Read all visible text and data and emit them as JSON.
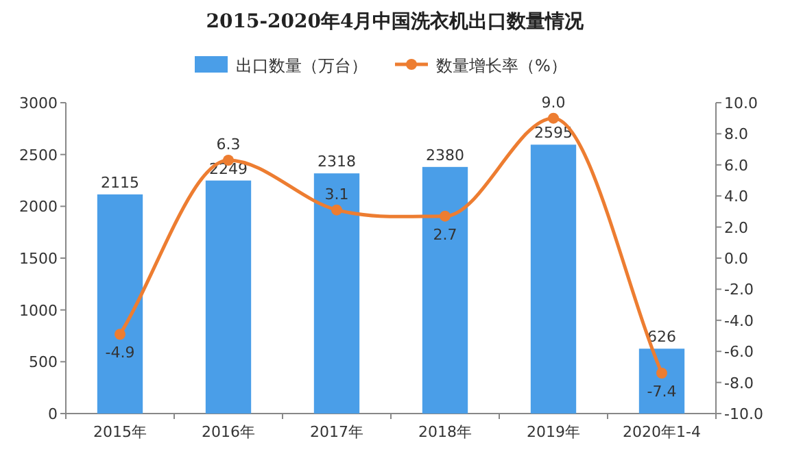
{
  "chart_data": {
    "type": "bar",
    "title": "2015-2020年4月中国洗衣机出口数量情况",
    "categories": [
      "2015年",
      "2016年",
      "2017年",
      "2018年",
      "2019年",
      "2020年1-4"
    ],
    "series": [
      {
        "name": "出口数量（万台）",
        "color": "#4a9ee8",
        "values": [
          2115,
          2249,
          2318,
          2380,
          2595,
          626
        ],
        "value_labels": [
          "2115",
          "2249",
          "2318",
          "2380",
          "2595",
          "626"
        ]
      },
      {
        "name": "数量增长率（%）",
        "type": "line",
        "axis": "y2",
        "color": "#ed7d31",
        "marker": "circle",
        "values": [
          -4.9,
          6.3,
          3.1,
          2.7,
          9.0,
          -7.4
        ],
        "value_labels": [
          "-4.9",
          "6.3",
          "3.1",
          "2.7",
          "9.0",
          "-7.4"
        ]
      }
    ],
    "ylim": [
      0,
      3000
    ],
    "yticks": [
      0,
      500,
      1000,
      1500,
      2000,
      2500,
      3000
    ],
    "y2lim": [
      -10,
      10
    ],
    "y2ticks": [
      {
        "value": -10,
        "label": "-10.0"
      },
      {
        "value": -8,
        "label": "-8.0"
      },
      {
        "value": -6,
        "label": "-6.0"
      },
      {
        "value": -4,
        "label": "-4.0"
      },
      {
        "value": -2,
        "label": "-2.0"
      },
      {
        "value": 0,
        "label": "0.0"
      },
      {
        "value": 2,
        "label": "2.0"
      },
      {
        "value": 4,
        "label": "4.0"
      },
      {
        "value": 6,
        "label": "6.0"
      },
      {
        "value": 8,
        "label": "8.0"
      },
      {
        "value": 10,
        "label": "10.0"
      }
    ],
    "legend": "top",
    "grid": false
  }
}
